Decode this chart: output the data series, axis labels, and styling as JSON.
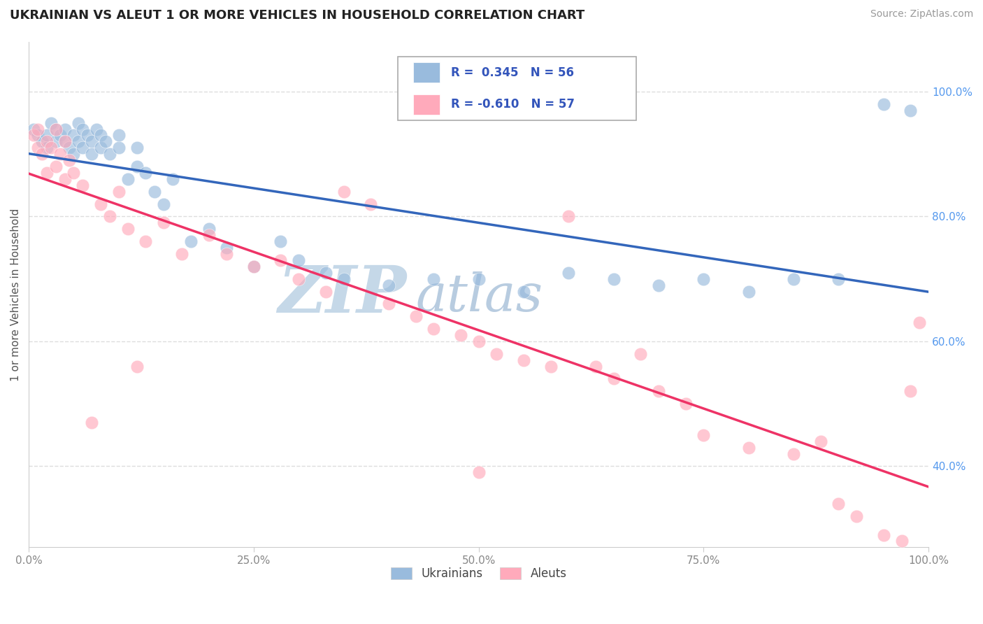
{
  "title": "UKRAINIAN VS ALEUT 1 OR MORE VEHICLES IN HOUSEHOLD CORRELATION CHART",
  "source": "Source: ZipAtlas.com",
  "ylabel": "1 or more Vehicles in Household",
  "ytick_labels": [
    "40.0%",
    "60.0%",
    "80.0%",
    "100.0%"
  ],
  "ytick_values": [
    0.4,
    0.6,
    0.8,
    1.0
  ],
  "xlim": [
    0.0,
    1.0
  ],
  "ylim": [
    0.27,
    1.08
  ],
  "legend_line1": "R =  0.345   N = 56",
  "legend_line2": "R = -0.610   N = 57",
  "color_ukrainian": "#99bbdd",
  "color_aleut": "#ffaabb",
  "trend_color_ukrainian": "#3366bb",
  "trend_color_aleut": "#ee3366",
  "watermark_zip": "ZIP",
  "watermark_atlas": "atlas",
  "watermark_color_zip": "#c5d8e8",
  "watermark_color_atlas": "#b8cce0",
  "grid_color": "#dddddd",
  "ukrainian_x": [
    0.005,
    0.01,
    0.015,
    0.02,
    0.025,
    0.02,
    0.03,
    0.03,
    0.035,
    0.04,
    0.04,
    0.045,
    0.05,
    0.05,
    0.055,
    0.055,
    0.06,
    0.06,
    0.065,
    0.07,
    0.07,
    0.075,
    0.08,
    0.08,
    0.085,
    0.09,
    0.1,
    0.1,
    0.11,
    0.12,
    0.12,
    0.13,
    0.14,
    0.15,
    0.16,
    0.18,
    0.2,
    0.22,
    0.25,
    0.28,
    0.3,
    0.33,
    0.35,
    0.4,
    0.45,
    0.5,
    0.55,
    0.6,
    0.65,
    0.7,
    0.75,
    0.8,
    0.85,
    0.9,
    0.95,
    0.98
  ],
  "ukrainian_y": [
    0.94,
    0.93,
    0.92,
    0.91,
    0.95,
    0.93,
    0.94,
    0.92,
    0.93,
    0.92,
    0.94,
    0.91,
    0.93,
    0.9,
    0.92,
    0.95,
    0.91,
    0.94,
    0.93,
    0.92,
    0.9,
    0.94,
    0.91,
    0.93,
    0.92,
    0.9,
    0.91,
    0.93,
    0.86,
    0.88,
    0.91,
    0.87,
    0.84,
    0.82,
    0.86,
    0.76,
    0.78,
    0.75,
    0.72,
    0.76,
    0.73,
    0.71,
    0.7,
    0.69,
    0.7,
    0.7,
    0.68,
    0.71,
    0.7,
    0.69,
    0.7,
    0.68,
    0.7,
    0.7,
    0.98,
    0.97
  ],
  "aleut_x": [
    0.005,
    0.01,
    0.01,
    0.015,
    0.02,
    0.02,
    0.025,
    0.03,
    0.03,
    0.035,
    0.04,
    0.04,
    0.045,
    0.05,
    0.06,
    0.07,
    0.08,
    0.09,
    0.1,
    0.11,
    0.12,
    0.13,
    0.15,
    0.17,
    0.2,
    0.22,
    0.25,
    0.28,
    0.3,
    0.33,
    0.35,
    0.38,
    0.4,
    0.43,
    0.45,
    0.48,
    0.5,
    0.52,
    0.55,
    0.58,
    0.6,
    0.63,
    0.65,
    0.68,
    0.7,
    0.73,
    0.75,
    0.8,
    0.85,
    0.88,
    0.9,
    0.92,
    0.95,
    0.97,
    0.98,
    0.99,
    0.5
  ],
  "aleut_y": [
    0.93,
    0.91,
    0.94,
    0.9,
    0.92,
    0.87,
    0.91,
    0.88,
    0.94,
    0.9,
    0.86,
    0.92,
    0.89,
    0.87,
    0.85,
    0.47,
    0.82,
    0.8,
    0.84,
    0.78,
    0.56,
    0.76,
    0.79,
    0.74,
    0.77,
    0.74,
    0.72,
    0.73,
    0.7,
    0.68,
    0.84,
    0.82,
    0.66,
    0.64,
    0.62,
    0.61,
    0.6,
    0.58,
    0.57,
    0.56,
    0.8,
    0.56,
    0.54,
    0.58,
    0.52,
    0.5,
    0.45,
    0.43,
    0.42,
    0.44,
    0.34,
    0.32,
    0.29,
    0.28,
    0.52,
    0.63,
    0.39
  ]
}
